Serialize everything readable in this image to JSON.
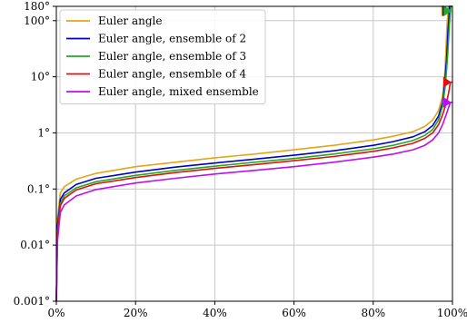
{
  "chart_data": {
    "type": "line",
    "title": "",
    "xlabel": "",
    "ylabel": "",
    "x_scale": "linear",
    "y_scale": "log",
    "xlim": [
      0,
      100
    ],
    "ylim": [
      0.001,
      180
    ],
    "x_ticks": [
      {
        "value": 0,
        "label": "0%"
      },
      {
        "value": 20,
        "label": "20%"
      },
      {
        "value": 40,
        "label": "40%"
      },
      {
        "value": 60,
        "label": "60%"
      },
      {
        "value": 80,
        "label": "80%"
      },
      {
        "value": 100,
        "label": "100%"
      }
    ],
    "y_ticks": [
      {
        "value": 0.001,
        "label": "0.001°"
      },
      {
        "value": 0.01,
        "label": "0.01°"
      },
      {
        "value": 0.1,
        "label": "0.1°"
      },
      {
        "value": 1,
        "label": "1°"
      },
      {
        "value": 10,
        "label": "10°"
      },
      {
        "value": 100,
        "label": "100°"
      },
      {
        "value": 180,
        "label": "180°"
      }
    ],
    "grid": true,
    "legend_position": "top-left",
    "series": [
      {
        "name": "Euler angle",
        "color": "#e6a417",
        "x": [
          0,
          0.3,
          1,
          2,
          5,
          10,
          20,
          30,
          40,
          50,
          60,
          70,
          80,
          85,
          90,
          93,
          95,
          96.5,
          97.5,
          98,
          98.3,
          98.6,
          99,
          100
        ],
        "y": [
          0.001,
          0.03,
          0.085,
          0.11,
          0.15,
          0.19,
          0.25,
          0.3,
          0.36,
          0.42,
          0.5,
          0.6,
          0.75,
          0.87,
          1.05,
          1.3,
          1.7,
          2.5,
          4.5,
          10,
          25,
          80,
          180,
          180
        ],
        "marker_y": 180
      },
      {
        "name": "Euler angle, ensemble of 2",
        "color": "#0000cc",
        "x": [
          0,
          0.3,
          1,
          2,
          5,
          10,
          20,
          30,
          40,
          50,
          60,
          70,
          80,
          85,
          90,
          93,
          95,
          96.5,
          97.5,
          98,
          98.5,
          98.9,
          99.3,
          100
        ],
        "y": [
          0.001,
          0.022,
          0.065,
          0.085,
          0.12,
          0.155,
          0.2,
          0.245,
          0.29,
          0.34,
          0.4,
          0.48,
          0.6,
          0.7,
          0.85,
          1.05,
          1.35,
          2,
          3.5,
          7,
          20,
          70,
          180,
          180
        ],
        "marker_y": 180
      },
      {
        "name": "Euler angle, ensemble of 3",
        "color": "#22aa22",
        "x": [
          0,
          0.3,
          1,
          2,
          5,
          10,
          20,
          30,
          40,
          50,
          60,
          70,
          80,
          85,
          90,
          93,
          95,
          96.5,
          97.5,
          98.2,
          98.8,
          99.2,
          99.6,
          100
        ],
        "y": [
          0.001,
          0.018,
          0.055,
          0.075,
          0.105,
          0.135,
          0.175,
          0.215,
          0.255,
          0.3,
          0.35,
          0.42,
          0.52,
          0.6,
          0.73,
          0.9,
          1.15,
          1.7,
          3,
          7,
          25,
          80,
          180,
          180
        ],
        "marker_y": 180
      },
      {
        "name": "Euler angle, ensemble of 4",
        "color": "#dd1111",
        "x": [
          0,
          0.3,
          1,
          2,
          5,
          10,
          20,
          30,
          40,
          50,
          60,
          70,
          80,
          85,
          90,
          93,
          95,
          96.5,
          97.5,
          98.5,
          99,
          99.5,
          100
        ],
        "y": [
          0.001,
          0.016,
          0.05,
          0.068,
          0.096,
          0.124,
          0.16,
          0.196,
          0.233,
          0.272,
          0.32,
          0.38,
          0.47,
          0.54,
          0.65,
          0.8,
          1.0,
          1.4,
          2.1,
          3.5,
          5,
          8,
          8
        ],
        "marker_y": 8
      },
      {
        "name": "Euler angle, mixed ensemble",
        "color": "#bb11ee",
        "x": [
          0,
          0.3,
          1,
          2,
          5,
          10,
          20,
          30,
          40,
          50,
          60,
          70,
          80,
          85,
          90,
          93,
          95,
          96.5,
          97.5,
          98.5,
          99,
          99.5,
          100
        ],
        "y": [
          0.001,
          0.012,
          0.038,
          0.052,
          0.075,
          0.098,
          0.128,
          0.155,
          0.185,
          0.215,
          0.25,
          0.3,
          0.37,
          0.42,
          0.5,
          0.6,
          0.75,
          1.0,
          1.4,
          2.2,
          2.8,
          3.5,
          3.5
        ],
        "marker_y": 3.5
      }
    ]
  }
}
